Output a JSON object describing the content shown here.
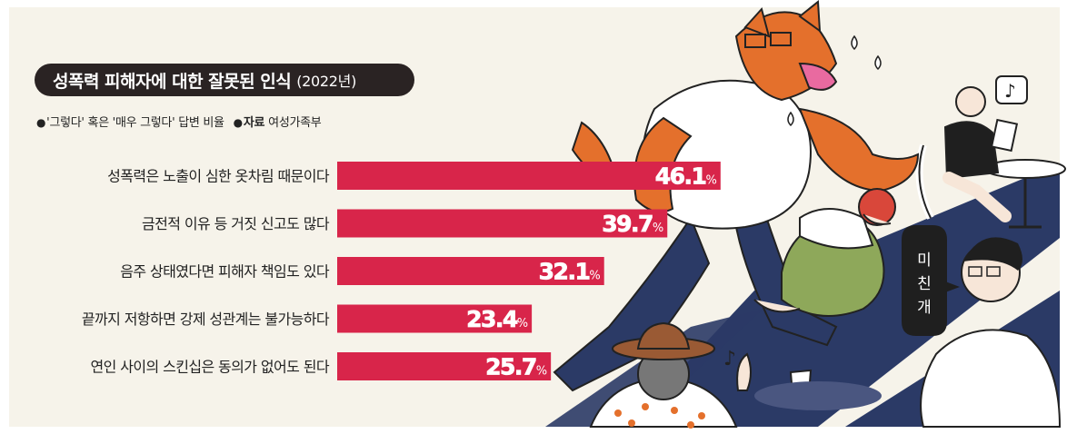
{
  "header": {
    "title": "성폭력 피해자에 대한 잘못된 인식",
    "year": "(2022년)"
  },
  "legend": {
    "bullet": "●",
    "note": "'그렇다' 혹은 '매우 그렇다' 답변 비율",
    "source_label": "자료",
    "source": "여성가족부"
  },
  "colors": {
    "bar": "#d8254a",
    "title_bg": "#2a2323",
    "panel_bg": "#f6f3ea",
    "wolf": "#e4702c",
    "navy": "#2b3a66"
  },
  "chart_data": {
    "type": "bar",
    "orientation": "horizontal",
    "title": "성폭력 피해자에 대한 잘못된 인식 (2022년)",
    "unit": "%",
    "xlim": [
      0,
      100
    ],
    "categories": [
      "성폭력은 노출이 심한 옷차림 때문이다",
      "금전적 이유 등 거짓 신고도 많다",
      "음주 상태였다면 피해자 책임도 있다",
      "끝까지 저항하면 강제 성관계는 불가능하다",
      "연인 사이의 스킨십은 동의가 없어도 된다"
    ],
    "values": [
      46.1,
      39.7,
      32.1,
      23.4,
      25.7
    ],
    "value_labels": [
      "46.1",
      "39.7",
      "32.1",
      "23.4",
      "25.7"
    ],
    "grid": false,
    "legend": "none"
  },
  "illustration": {
    "speech_bubble": [
      "미",
      "친",
      "개"
    ],
    "music_note": "♪",
    "icons": [
      "wolf-illustration",
      "crouching-woman-illustration",
      "man-with-hat-illustration",
      "man-in-cafe-illustration",
      "man-with-glasses-illustration",
      "music-note-icon",
      "speech-bubble-icon"
    ]
  }
}
